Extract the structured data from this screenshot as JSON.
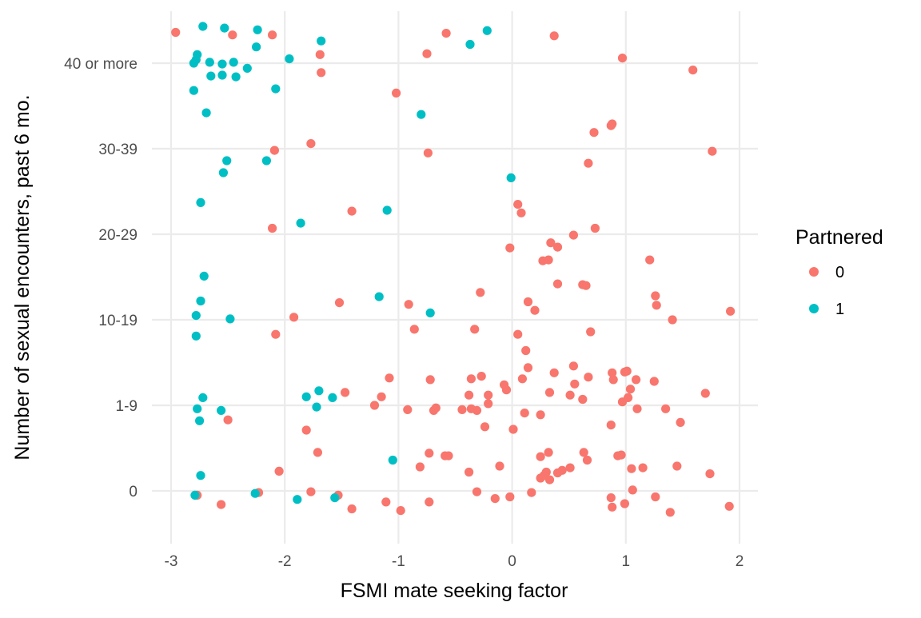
{
  "chart_data": {
    "type": "scatter",
    "xlabel": "FSMI mate seeking factor",
    "ylabel": "Number of sexual encounters, past 6 mo.",
    "xlim": [
      -3.05,
      2.1
    ],
    "x_ticks": [
      -3,
      -2,
      -1,
      0,
      1,
      2
    ],
    "x_tick_labels": [
      "-3",
      "-2",
      "-1",
      "0",
      "1",
      "2"
    ],
    "y_categories": [
      "0",
      "1-9",
      "10-19",
      "20-29",
      "30-39",
      "40 or more"
    ],
    "y_note": "y values are category positions (1 = 0, 2 = 1-9, 3 = 10-19, 4 = 20-29, 5 = 30-39, 6 = 40 or more) with vertical jitter",
    "ylim": [
      0.4,
      6.3
    ],
    "grid": true,
    "legend": {
      "title": "Partnered",
      "placement": "right"
    },
    "colors": {
      "0": "#F8766D",
      "1": "#00BFC4"
    },
    "series": [
      {
        "name": "0",
        "color": "#F8766D",
        "points": [
          [
            -2.96,
            6.36
          ],
          [
            -2.46,
            6.33
          ],
          [
            -2.11,
            6.33
          ],
          [
            -0.58,
            6.35
          ],
          [
            0.37,
            6.32
          ],
          [
            -1.69,
            6.1
          ],
          [
            -0.75,
            6.11
          ],
          [
            0.97,
            6.06
          ],
          [
            1.59,
            5.92
          ],
          [
            -1.68,
            5.89
          ],
          [
            -1.02,
            5.65
          ],
          [
            0.88,
            5.29
          ],
          [
            0.87,
            5.27
          ],
          [
            0.72,
            5.19
          ],
          [
            -1.77,
            5.06
          ],
          [
            -2.09,
            4.98
          ],
          [
            -0.74,
            4.95
          ],
          [
            1.76,
            4.97
          ],
          [
            0.67,
            4.83
          ],
          [
            0.05,
            4.35
          ],
          [
            0.08,
            4.25
          ],
          [
            -1.41,
            4.27
          ],
          [
            -2.11,
            4.07
          ],
          [
            0.73,
            4.07
          ],
          [
            0.54,
            3.99
          ],
          [
            0.34,
            3.9
          ],
          [
            0.4,
            3.85
          ],
          [
            -0.02,
            3.84
          ],
          [
            1.21,
            3.7
          ],
          [
            0.32,
            3.7
          ],
          [
            0.27,
            3.69
          ],
          [
            0.4,
            3.42
          ],
          [
            0.62,
            3.41
          ],
          [
            0.65,
            3.4
          ],
          [
            -0.28,
            3.32
          ],
          [
            1.26,
            3.28
          ],
          [
            1.27,
            3.17
          ],
          [
            -1.52,
            3.2
          ],
          [
            -0.91,
            3.18
          ],
          [
            0.14,
            3.21
          ],
          [
            0.2,
            3.11
          ],
          [
            1.92,
            3.1
          ],
          [
            -1.92,
            3.03
          ],
          [
            1.41,
            3.0
          ],
          [
            -0.86,
            2.89
          ],
          [
            -0.33,
            2.89
          ],
          [
            0.69,
            2.86
          ],
          [
            0.05,
            2.83
          ],
          [
            -2.08,
            2.83
          ],
          [
            0.12,
            2.64
          ],
          [
            0.14,
            2.44
          ],
          [
            0.54,
            2.46
          ],
          [
            0.37,
            2.38
          ],
          [
            0.99,
            2.39
          ],
          [
            1.01,
            2.4
          ],
          [
            0.88,
            2.38
          ],
          [
            -0.27,
            2.34
          ],
          [
            -0.36,
            2.31
          ],
          [
            -1.08,
            2.32
          ],
          [
            0.67,
            2.33
          ],
          [
            0.09,
            2.31
          ],
          [
            -0.72,
            2.3
          ],
          [
            0.89,
            2.3
          ],
          [
            1.09,
            2.3
          ],
          [
            1.25,
            2.28
          ],
          [
            -0.07,
            2.24
          ],
          [
            0.55,
            2.25
          ],
          [
            1.04,
            2.19
          ],
          [
            -1.47,
            2.15
          ],
          [
            -0.21,
            2.12
          ],
          [
            0.33,
            2.15
          ],
          [
            -0.38,
            2.12
          ],
          [
            0.51,
            2.12
          ],
          [
            1.7,
            2.14
          ],
          [
            -1.15,
            2.1
          ],
          [
            -0.05,
            2.18
          ],
          [
            0.62,
            2.07
          ],
          [
            -0.21,
            2.02
          ],
          [
            1.02,
            2.09
          ],
          [
            0.97,
            2.04
          ],
          [
            -1.21,
            2.0
          ],
          [
            -0.67,
            1.97
          ],
          [
            -0.44,
            1.95
          ],
          [
            -0.36,
            1.96
          ],
          [
            -0.31,
            1.94
          ],
          [
            -0.69,
            1.94
          ],
          [
            -0.92,
            1.95
          ],
          [
            1.1,
            1.96
          ],
          [
            1.35,
            1.96
          ],
          [
            0.11,
            1.91
          ],
          [
            0.25,
            1.89
          ],
          [
            -2.5,
            1.83
          ],
          [
            1.48,
            1.8
          ],
          [
            0.87,
            1.77
          ],
          [
            -0.24,
            1.75
          ],
          [
            0.01,
            1.72
          ],
          [
            -1.81,
            1.71
          ],
          [
            -1.71,
            1.45
          ],
          [
            -0.73,
            1.44
          ],
          [
            0.32,
            1.45
          ],
          [
            0.63,
            1.45
          ],
          [
            -0.59,
            1.41
          ],
          [
            -0.56,
            1.41
          ],
          [
            0.25,
            1.4
          ],
          [
            0.93,
            1.41
          ],
          [
            0.96,
            1.42
          ],
          [
            0.66,
            1.36
          ],
          [
            -0.11,
            1.29
          ],
          [
            -0.81,
            1.28
          ],
          [
            1.45,
            1.29
          ],
          [
            -0.38,
            1.22
          ],
          [
            -2.05,
            1.23
          ],
          [
            1.05,
            1.26
          ],
          [
            1.15,
            1.27
          ],
          [
            0.51,
            1.27
          ],
          [
            0.44,
            1.24
          ],
          [
            0.4,
            1.21
          ],
          [
            0.3,
            1.22
          ],
          [
            0.28,
            1.18
          ],
          [
            0.25,
            1.15
          ],
          [
            1.74,
            1.2
          ],
          [
            -1.77,
            0.99
          ],
          [
            -2.23,
            0.98
          ],
          [
            -2.77,
            0.95
          ],
          [
            -0.31,
            0.99
          ],
          [
            0.33,
            1.13
          ],
          [
            0.17,
            0.98
          ],
          [
            -1.53,
            0.95
          ],
          [
            1.06,
            1.01
          ],
          [
            0.87,
            0.92
          ],
          [
            1.26,
            0.93
          ],
          [
            -0.02,
            0.93
          ],
          [
            -0.15,
            0.91
          ],
          [
            -1.11,
            0.87
          ],
          [
            -0.73,
            0.87
          ],
          [
            -2.56,
            0.84
          ],
          [
            0.99,
            0.85
          ],
          [
            0.88,
            0.81
          ],
          [
            1.91,
            0.82
          ],
          [
            -1.41,
            0.79
          ],
          [
            -0.98,
            0.77
          ],
          [
            1.39,
            0.75
          ]
        ]
      },
      {
        "name": "1",
        "color": "#00BFC4",
        "points": [
          [
            -2.72,
            6.43
          ],
          [
            -2.53,
            6.41
          ],
          [
            -2.24,
            6.39
          ],
          [
            -0.22,
            6.38
          ],
          [
            -1.68,
            6.26
          ],
          [
            -0.37,
            6.22
          ],
          [
            -2.25,
            6.19
          ],
          [
            -2.77,
            6.1
          ],
          [
            -1.96,
            6.05
          ],
          [
            -2.78,
            6.04
          ],
          [
            -2.66,
            6.01
          ],
          [
            -2.45,
            6.01
          ],
          [
            -2.8,
            6.0
          ],
          [
            -2.55,
            5.99
          ],
          [
            -2.33,
            5.94
          ],
          [
            -2.55,
            5.86
          ],
          [
            -2.65,
            5.85
          ],
          [
            -2.43,
            5.84
          ],
          [
            -2.08,
            5.7
          ],
          [
            -2.8,
            5.68
          ],
          [
            -2.69,
            5.42
          ],
          [
            -0.8,
            5.4
          ],
          [
            -2.51,
            4.86
          ],
          [
            -2.16,
            4.86
          ],
          [
            -2.54,
            4.72
          ],
          [
            -0.01,
            4.66
          ],
          [
            -2.74,
            4.37
          ],
          [
            -1.1,
            4.28
          ],
          [
            -1.86,
            4.13
          ],
          [
            -2.71,
            3.51
          ],
          [
            -1.17,
            3.27
          ],
          [
            -2.74,
            3.22
          ],
          [
            -2.78,
            3.05
          ],
          [
            -2.48,
            3.01
          ],
          [
            -0.72,
            3.08
          ],
          [
            -2.78,
            2.81
          ],
          [
            -1.7,
            2.17
          ],
          [
            -1.81,
            2.1
          ],
          [
            -1.58,
            2.09
          ],
          [
            -2.72,
            2.09
          ],
          [
            -1.72,
            1.98
          ],
          [
            -2.77,
            1.96
          ],
          [
            -2.56,
            1.94
          ],
          [
            -2.75,
            1.82
          ],
          [
            -1.05,
            1.36
          ],
          [
            -2.74,
            1.18
          ],
          [
            -2.26,
            0.97
          ],
          [
            -2.79,
            0.95
          ],
          [
            -1.56,
            0.92
          ],
          [
            -1.89,
            0.9
          ]
        ]
      }
    ]
  }
}
